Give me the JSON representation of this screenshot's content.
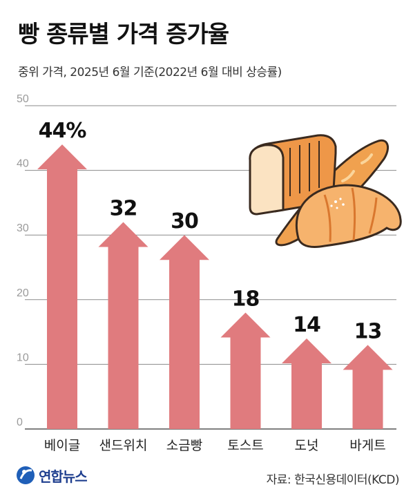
{
  "title": "빵 종류별 가격 증가율",
  "subtitle": "중위 가격, 2025년 6월 기준(2022년 6월 대비 상승률)",
  "source": "자료: 한국신용데이터(KCD)",
  "logo": {
    "text": "연합뉴스"
  },
  "colors": {
    "bar": "#e07b7e",
    "grid": "#8a8a8a",
    "bread_light": "#f6c089",
    "bread_mid": "#ee9748",
    "bread_dark": "#d9772e",
    "outline": "#3a2a1f"
  },
  "chart_data": {
    "type": "bar",
    "title": "빵 종류별 가격 증가율",
    "subtitle": "중위 가격, 2025년 6월 기준(2022년 6월 대비 상승률)",
    "categories": [
      "베이글",
      "샌드위치",
      "소금빵",
      "토스트",
      "도넛",
      "바게트"
    ],
    "values": [
      44,
      32,
      30,
      18,
      14,
      13
    ],
    "value_labels": [
      "44%",
      "32",
      "30",
      "18",
      "14",
      "13"
    ],
    "y_ticks": [
      "0",
      "10",
      "20",
      "30",
      "40",
      "50"
    ],
    "ylim": [
      0,
      50
    ],
    "grid": true,
    "xlabel": "",
    "ylabel": ""
  }
}
